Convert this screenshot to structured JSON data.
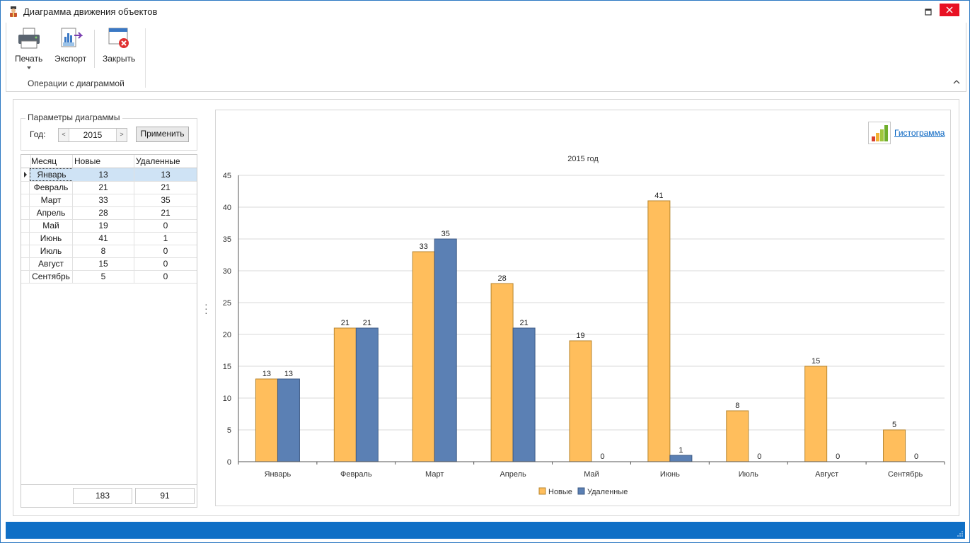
{
  "window": {
    "title": "Диаграмма движения объектов"
  },
  "ribbon": {
    "print_label": "Печать",
    "export_label": "Экспорт",
    "close_label": "Закрыть",
    "group_label": "Операции с диаграммой"
  },
  "params": {
    "legend": "Параметры диаграммы",
    "year_label": "Год:",
    "year_value": "2015",
    "apply_label": "Применить"
  },
  "table": {
    "headers": [
      "Месяц",
      "Новые",
      "Удаленные"
    ],
    "rows": [
      [
        "Январь",
        "13",
        "13"
      ],
      [
        "Февраль",
        "21",
        "21"
      ],
      [
        "Март",
        "33",
        "35"
      ],
      [
        "Апрель",
        "28",
        "21"
      ],
      [
        "Май",
        "19",
        "0"
      ],
      [
        "Июнь",
        "41",
        "1"
      ],
      [
        "Июль",
        "8",
        "0"
      ],
      [
        "Август",
        "15",
        "0"
      ],
      [
        "Сентябрь",
        "5",
        "0"
      ]
    ],
    "selected_row": 0,
    "totals": [
      "183",
      "91"
    ]
  },
  "chart_toolbar": {
    "histogram_label": "Гистограмма"
  },
  "colors": {
    "new": "#ffbe5c",
    "deleted": "#5b80b4",
    "accent": "#0f6fc6"
  },
  "chart_data": {
    "type": "bar",
    "title": "2015 год",
    "categories": [
      "Январь",
      "Февраль",
      "Март",
      "Апрель",
      "Май",
      "Июнь",
      "Июль",
      "Август",
      "Сентябрь"
    ],
    "series": [
      {
        "name": "Новые",
        "values": [
          13,
          21,
          33,
          28,
          19,
          41,
          8,
          15,
          5
        ]
      },
      {
        "name": "Удаленные",
        "values": [
          13,
          21,
          35,
          21,
          0,
          1,
          0,
          0,
          0
        ]
      }
    ],
    "ylim": [
      0,
      45
    ],
    "yticks": [
      0,
      5,
      10,
      15,
      20,
      25,
      30,
      35,
      40,
      45
    ],
    "grid": true,
    "legend_position": "bottom-center",
    "data_labels": true
  }
}
